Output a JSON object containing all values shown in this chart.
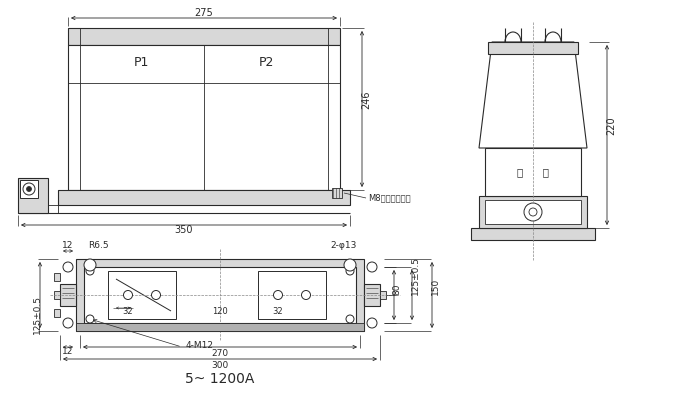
{
  "bg_color": "#ffffff",
  "line_color": "#2a2a2a",
  "dim_color": "#2a2a2a",
  "gray_fill": "#c8c8c8",
  "light_gray": "#d8d8d8",
  "mid_gray": "#b0b0b0",
  "title_bottom": "5~ 1200A",
  "label_P1": "P1",
  "label_P2": "P2",
  "label_mingpai": "銘      牌",
  "dim_275": "275",
  "dim_246": "246",
  "dim_350": "350",
  "dim_220": "220",
  "dim_12a": "12",
  "dim_12b": "12",
  "dim_R65": "R6.5",
  "dim_2phi13": "2-φ13",
  "dim_80": "80",
  "dim_32a": "32",
  "dim_120": "120",
  "dim_32b": "32",
  "dim_125_05a": "125±0.5",
  "dim_125_05b": "125±0.5",
  "dim_150": "150",
  "dim_270": "270",
  "dim_300": "300",
  "dim_4M12": "4-M12",
  "label_M8": "M8接地螺栓位置"
}
